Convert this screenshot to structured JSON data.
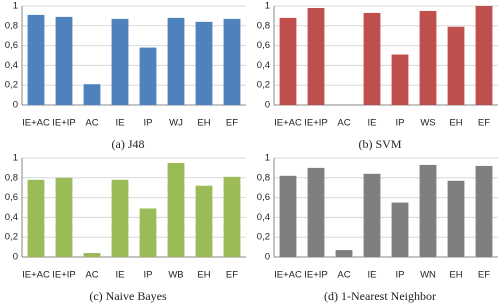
{
  "chart_data": [
    {
      "type": "bar",
      "title": "(a) J48",
      "categories": [
        "IE+AC",
        "IE+IP",
        "AC",
        "IE",
        "IP",
        "WJ",
        "EH",
        "EF"
      ],
      "values": [
        0.91,
        0.89,
        0.21,
        0.87,
        0.58,
        0.88,
        0.84,
        0.87
      ],
      "color": "#4f81bd",
      "ylim": [
        0,
        1
      ],
      "yticks": [
        0,
        {
          "value": 0.2,
          "label": "0,2"
        },
        {
          "value": 0.4,
          "label": "0,4"
        },
        {
          "value": 0.6,
          "label": "0,6"
        },
        {
          "value": 0.8,
          "label": "0,8"
        },
        1
      ],
      "grid": true
    },
    {
      "type": "bar",
      "title": "(b) SVM",
      "categories": [
        "IE+AC",
        "IE+IP",
        "AC",
        "IE",
        "IP",
        "WS",
        "EH",
        "EF"
      ],
      "values": [
        0.88,
        0.98,
        0,
        0.93,
        0.51,
        0.95,
        0.79,
        1.0
      ],
      "color": "#c0504d",
      "ylim": [
        0,
        1
      ],
      "yticks": [
        0,
        {
          "value": 0.2,
          "label": "0,2"
        },
        {
          "value": 0.4,
          "label": "0,4"
        },
        {
          "value": 0.6,
          "label": "0,6"
        },
        {
          "value": 0.8,
          "label": "0,8"
        },
        1
      ],
      "grid": true
    },
    {
      "type": "bar",
      "title": "(c) Naive Bayes",
      "categories": [
        "IE+AC",
        "IE+IP",
        "AC",
        "IE",
        "IP",
        "WB",
        "EH",
        "EF"
      ],
      "values": [
        0.78,
        0.8,
        0.04,
        0.78,
        0.49,
        0.95,
        0.72,
        0.81
      ],
      "color": "#9bbb59",
      "ylim": [
        0,
        1
      ],
      "yticks": [
        0,
        {
          "value": 0.2,
          "label": "0,2"
        },
        {
          "value": 0.4,
          "label": "0,4"
        },
        {
          "value": 0.6,
          "label": "0,6"
        },
        {
          "value": 0.8,
          "label": "0,8"
        },
        1
      ],
      "grid": true
    },
    {
      "type": "bar",
      "title": "(d) 1-Nearest Neighbor",
      "categories": [
        "IE+AC",
        "IE+IP",
        "AC",
        "IE",
        "IP",
        "WN",
        "EH",
        "EF"
      ],
      "values": [
        0.82,
        0.9,
        0.07,
        0.84,
        0.55,
        0.93,
        0.77,
        0.92
      ],
      "color": "#7f7f7f",
      "ylim": [
        0,
        1
      ],
      "yticks": [
        0,
        {
          "value": 0.2,
          "label": "0,2"
        },
        {
          "value": 0.4,
          "label": "0,4"
        },
        {
          "value": 0.6,
          "label": "0,6"
        },
        {
          "value": 0.8,
          "label": "0,8"
        },
        1
      ],
      "grid": true
    }
  ]
}
